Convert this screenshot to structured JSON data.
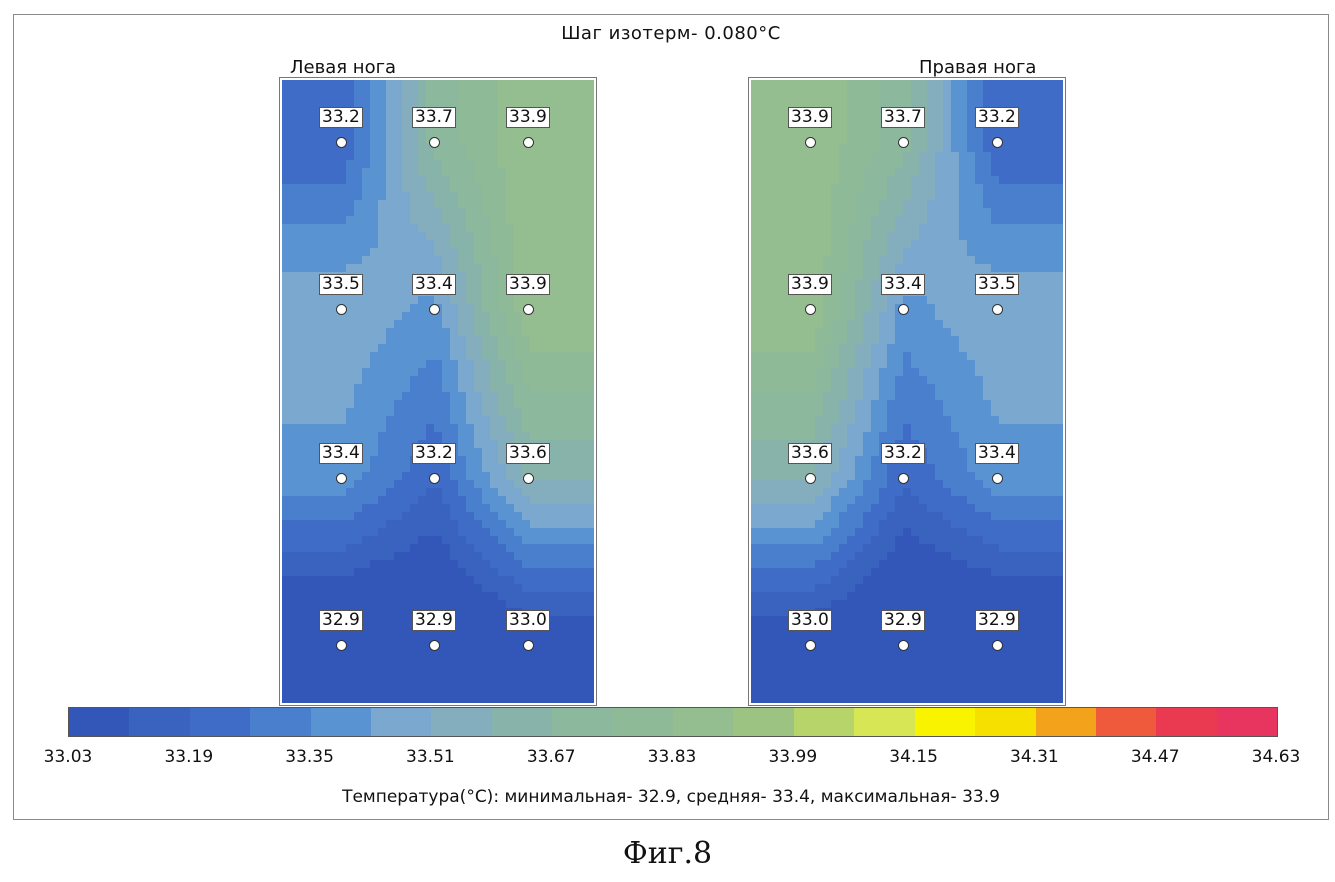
{
  "chart_data": {
    "type": "heatmap",
    "title": "Шаг изотерм- 0.080°C",
    "panels": [
      {
        "name": "Левая нога",
        "grid": [
          [
            "33.2",
            "33.7",
            "33.9"
          ],
          [
            "33.5",
            "33.4",
            "33.9"
          ],
          [
            "33.4",
            "33.2",
            "33.6"
          ],
          [
            "32.9",
            "32.9",
            "33.0"
          ]
        ]
      },
      {
        "name": "Правая нога",
        "grid": [
          [
            "33.9",
            "33.7",
            "33.2"
          ],
          [
            "33.9",
            "33.4",
            "33.5"
          ],
          [
            "33.6",
            "33.2",
            "33.4"
          ],
          [
            "33.0",
            "32.9",
            "32.9"
          ]
        ]
      }
    ],
    "colorbar": {
      "ticks": [
        "33.03",
        "33.19",
        "33.35",
        "33.51",
        "33.67",
        "33.83",
        "33.99",
        "34.15",
        "34.31",
        "34.47",
        "34.63"
      ],
      "range": [
        33.03,
        34.63
      ],
      "colors": [
        "#3357b8",
        "#3a63bf",
        "#3e6cc6",
        "#4a7fce",
        "#5a93d2",
        "#7aa8cf",
        "#84aebd",
        "#88b3aa",
        "#8cb89e",
        "#8fba98",
        "#94be90",
        "#9cc382",
        "#b6d46a",
        "#d7e654",
        "#f9f300",
        "#f6e000",
        "#f3a21c",
        "#ef5a3c",
        "#ea3a52",
        "#e83560"
      ]
    },
    "stats": {
      "label": "Температура(°C):",
      "min_label": "минимальная-",
      "min": "32.9,",
      "avg_label": "средняя-",
      "avg": "33.4,",
      "max_label": "максимальная-",
      "max": "33.9"
    }
  },
  "caption": "Фиг.8"
}
